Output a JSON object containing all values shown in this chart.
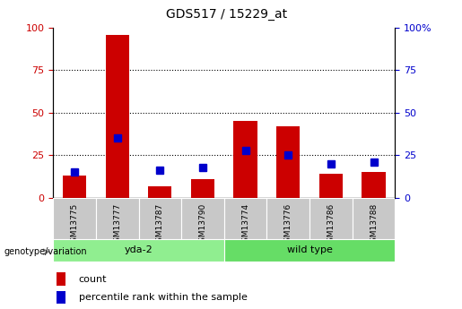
{
  "title": "GDS517 / 15229_at",
  "samples": [
    "GSM13775",
    "GSM13777",
    "GSM13787",
    "GSM13790",
    "GSM13774",
    "GSM13776",
    "GSM13786",
    "GSM13788"
  ],
  "count_values": [
    13,
    96,
    7,
    11,
    45,
    42,
    14,
    15
  ],
  "percentile_values": [
    15,
    35,
    16,
    18,
    28,
    25,
    20,
    21
  ],
  "groups": [
    {
      "label": "yda-2",
      "start": 0,
      "end": 4,
      "color": "#90ee90"
    },
    {
      "label": "wild type",
      "start": 4,
      "end": 8,
      "color": "#66dd66"
    }
  ],
  "ylim_left": [
    0,
    100
  ],
  "ylim_right": [
    0,
    100
  ],
  "yticks": [
    0,
    25,
    50,
    75,
    100
  ],
  "bar_color_count": "#cc0000",
  "bar_color_percentile": "#0000cc",
  "grid_color": "black",
  "bg_color": "#ffffff",
  "tick_label_area_color": "#c8c8c8",
  "group_label_left": "genotype/variation",
  "legend_count": "count",
  "legend_percentile": "percentile rank within the sample",
  "left_yaxis_color": "#cc0000",
  "right_yaxis_color": "#0000cc",
  "right_ytick_labels": [
    "0",
    "25",
    "50",
    "75",
    "100%"
  ],
  "bar_width": 0.55,
  "marker_size": 6
}
